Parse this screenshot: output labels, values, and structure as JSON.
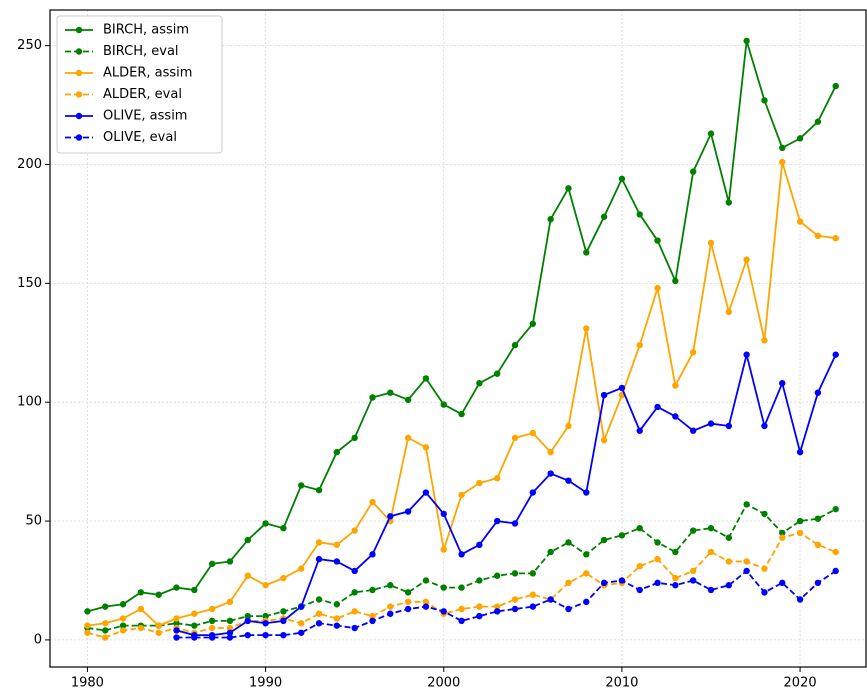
{
  "chart_data": {
    "type": "line",
    "x": [
      1980,
      1981,
      1982,
      1983,
      1984,
      1985,
      1986,
      1987,
      1988,
      1989,
      1990,
      1991,
      1992,
      1993,
      1994,
      1995,
      1996,
      1997,
      1998,
      1999,
      2000,
      2001,
      2002,
      2003,
      2004,
      2005,
      2006,
      2007,
      2008,
      2009,
      2010,
      2011,
      2012,
      2013,
      2014,
      2015,
      2016,
      2017,
      2018,
      2019,
      2020,
      2021,
      2022
    ],
    "series": [
      {
        "name": "BIRCH, assim",
        "color": "#008000",
        "linestyle": "solid",
        "values": [
          12,
          14,
          15,
          20,
          19,
          22,
          21,
          32,
          33,
          42,
          49,
          47,
          65,
          63,
          79,
          85,
          102,
          104,
          101,
          110,
          99,
          95,
          108,
          112,
          124,
          133,
          177,
          190,
          163,
          178,
          194,
          179,
          168,
          151,
          197,
          213,
          184,
          252,
          227,
          207,
          211,
          218,
          233
        ]
      },
      {
        "name": "BIRCH, eval",
        "color": "#008000",
        "linestyle": "dashed",
        "values": [
          5,
          4,
          6,
          6,
          6,
          7,
          6,
          8,
          8,
          10,
          10,
          12,
          14,
          17,
          15,
          20,
          21,
          23,
          20,
          25,
          22,
          22,
          25,
          27,
          28,
          28,
          37,
          41,
          36,
          42,
          44,
          47,
          41,
          37,
          46,
          47,
          43,
          57,
          53,
          45,
          50,
          51,
          55
        ]
      },
      {
        "name": "ALDER, assim",
        "color": "#ffa500",
        "linestyle": "solid",
        "values": [
          6,
          7,
          9,
          13,
          6,
          9,
          11,
          13,
          16,
          27,
          23,
          26,
          30,
          41,
          40,
          46,
          58,
          50,
          85,
          81,
          38,
          61,
          66,
          68,
          85,
          87,
          79,
          90,
          131,
          84,
          103,
          124,
          148,
          107,
          121,
          167,
          138,
          160,
          126,
          201,
          176,
          170,
          169
        ]
      },
      {
        "name": "ALDER, eval",
        "color": "#ffa500",
        "linestyle": "dashed",
        "values": [
          3,
          1,
          4,
          5,
          3,
          5,
          3,
          5,
          5,
          8,
          8,
          9,
          7,
          11,
          9,
          12,
          10,
          14,
          16,
          16,
          11,
          13,
          14,
          14,
          17,
          19,
          17,
          24,
          28,
          23,
          24,
          31,
          34,
          26,
          29,
          37,
          33,
          33,
          30,
          43,
          45,
          40,
          37
        ]
      },
      {
        "name": "OLIVE, assim",
        "color": "#0000ff",
        "linestyle": "solid",
        "values": [
          null,
          null,
          null,
          null,
          null,
          4,
          2,
          2,
          3,
          8,
          7,
          8,
          14,
          34,
          33,
          29,
          36,
          52,
          54,
          62,
          53,
          36,
          40,
          50,
          49,
          62,
          70,
          67,
          62,
          103,
          106,
          88,
          98,
          94,
          88,
          91,
          90,
          120,
          90,
          108,
          79,
          104,
          120
        ]
      },
      {
        "name": "OLIVE, eval",
        "color": "#0000ff",
        "linestyle": "dashed",
        "values": [
          null,
          null,
          null,
          null,
          null,
          1,
          1,
          1,
          1,
          2,
          2,
          2,
          3,
          7,
          6,
          5,
          8,
          11,
          13,
          14,
          12,
          8,
          10,
          12,
          13,
          14,
          17,
          13,
          16,
          24,
          25,
          21,
          24,
          23,
          25,
          21,
          23,
          29,
          20,
          24,
          17,
          24,
          29
        ]
      }
    ],
    "xlim": [
      1977.9,
      2023.7
    ],
    "xticks": [
      1980,
      1990,
      2000,
      2010,
      2020
    ],
    "ylim": [
      -11.4,
      265
    ],
    "yticks": [
      0,
      50,
      100,
      150,
      200,
      250
    ],
    "grid": true,
    "legend": "upper left"
  }
}
